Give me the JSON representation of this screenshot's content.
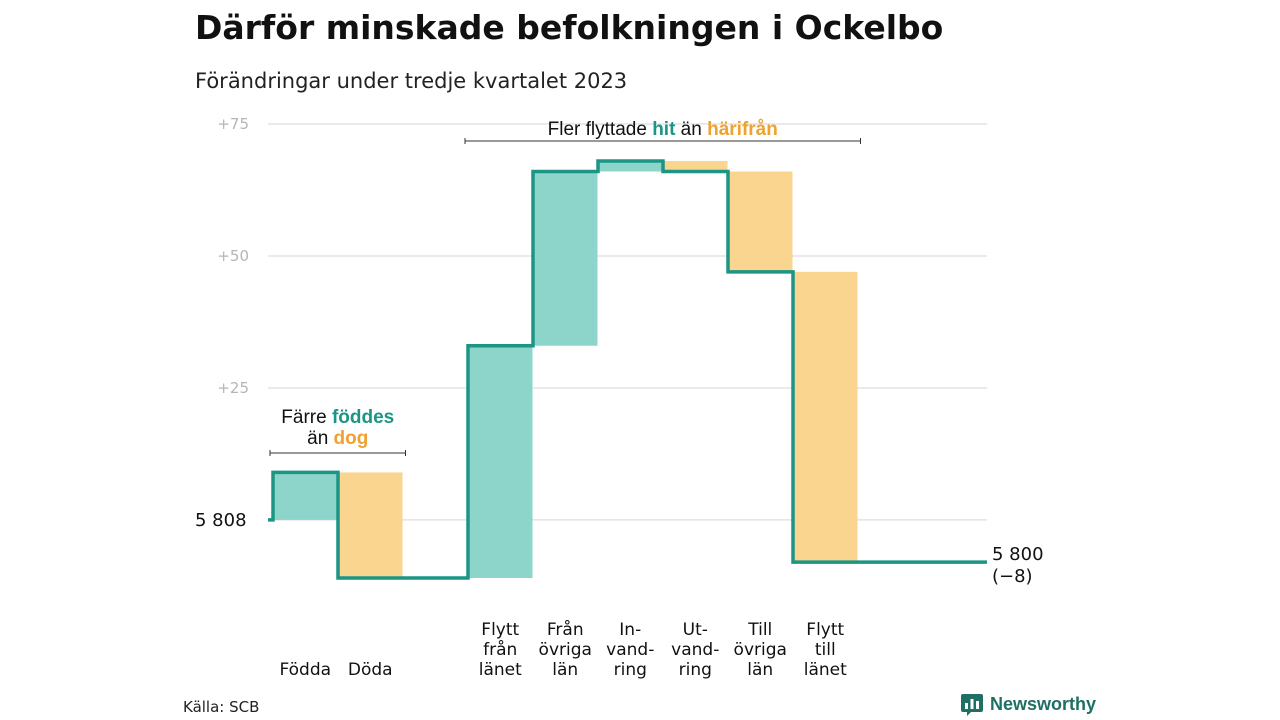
{
  "header": {
    "title": "Därför minskade befolkningen i Ockelbo",
    "subtitle": "Förändringar under tredje kvartalet 2023"
  },
  "footer": {
    "source": "Källa: SCB",
    "brand": "Newsworthy"
  },
  "colors": {
    "inflow": "#8dd5ca",
    "outflow": "#fad58f",
    "line": "#1c9584",
    "grid": "#e3e3e3"
  },
  "chart_data": {
    "type": "waterfall",
    "baseline": 5808,
    "baseline_label": "5  808",
    "end_value": 5800,
    "end_label": "5 800",
    "end_change_label": "(−8)",
    "y_relative_range": [
      -11,
      75
    ],
    "y_ticks": [
      {
        "value": 25,
        "label": "+25"
      },
      {
        "value": 50,
        "label": "+50"
      },
      {
        "value": 75,
        "label": "+75"
      }
    ],
    "grid": true,
    "steps": [
      {
        "label_lines": [
          "Födda"
        ],
        "change": 9,
        "kind": "in"
      },
      {
        "label_lines": [
          "Döda"
        ],
        "change": -20,
        "kind": "out"
      },
      {
        "label_lines": [],
        "change": 0,
        "kind": "gap"
      },
      {
        "label_lines": [
          "Flytt",
          "från",
          "länet"
        ],
        "change": 44,
        "kind": "in"
      },
      {
        "label_lines": [
          "Från",
          "övriga",
          "län"
        ],
        "change": 33,
        "kind": "in"
      },
      {
        "label_lines": [
          "In-",
          "vand-",
          "ring"
        ],
        "change": 2,
        "kind": "in"
      },
      {
        "label_lines": [
          "Ut-",
          "vand-",
          "ring"
        ],
        "change": -2,
        "kind": "out"
      },
      {
        "label_lines": [
          "Till",
          "övriga",
          "län"
        ],
        "change": -19,
        "kind": "out"
      },
      {
        "label_lines": [
          "Flytt",
          "till",
          "länet"
        ],
        "change": -55,
        "kind": "out"
      }
    ],
    "annotations": [
      {
        "lines": [
          [
            {
              "text": "Färre ",
              "style": "plain"
            },
            {
              "text": "föddes",
              "style": "in"
            }
          ],
          [
            {
              "text": "än ",
              "style": "plain"
            },
            {
              "text": "dog",
              "style": "out"
            }
          ]
        ],
        "covers_steps": [
          0,
          1
        ]
      },
      {
        "lines": [
          [
            {
              "text": "Fler flyttade ",
              "style": "plain"
            },
            {
              "text": "hit",
              "style": "in"
            },
            {
              "text": " än ",
              "style": "plain"
            },
            {
              "text": "härifrån",
              "style": "out"
            }
          ]
        ],
        "covers_steps": [
          3,
          8
        ]
      }
    ]
  }
}
